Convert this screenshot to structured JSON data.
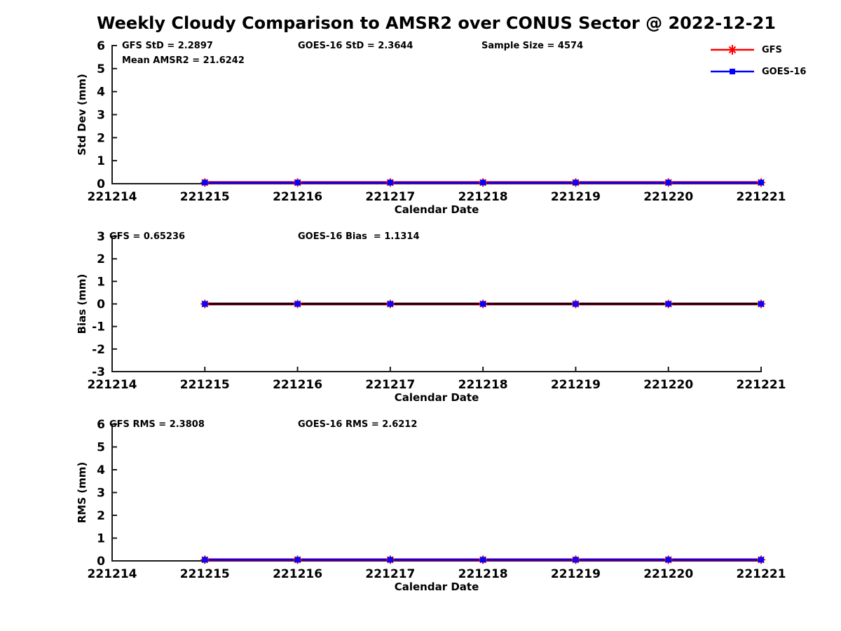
{
  "page": {
    "title": "Weekly Cloudy Comparison to AMSR2 over CONUS Sector @ 2022-12-21"
  },
  "colors": {
    "gfs": "#ff0000",
    "goes16": "#0000ff",
    "axis": "#1a1a1a",
    "zero_line": "#000000",
    "text": "#000000",
    "background": "#ffffff"
  },
  "legend": {
    "items": [
      {
        "label": "GFS",
        "color_key": "gfs",
        "marker": "asterisk"
      },
      {
        "label": "GOES-16",
        "color_key": "goes16",
        "marker": "square"
      }
    ]
  },
  "chart_data": [
    {
      "type": "line",
      "id": "stddev",
      "ylabel": "Std Dev (mm)",
      "xlabel": "Calendar Date",
      "ylim": [
        0,
        6
      ],
      "yticks": [
        0,
        1,
        2,
        3,
        4,
        5,
        6
      ],
      "xlim": [
        221214,
        221221
      ],
      "xticks": [
        221214,
        221215,
        221216,
        221217,
        221218,
        221219,
        221220,
        221221
      ],
      "xtick_labels": [
        "221214",
        "221215",
        "221216",
        "221217",
        "221218",
        "221219",
        "221220",
        "221221"
      ],
      "x": [
        221215,
        221216,
        221217,
        221218,
        221219,
        221220,
        221221
      ],
      "series": [
        {
          "name": "GFS",
          "color_key": "gfs",
          "marker": "asterisk",
          "values": [
            0.05,
            0.05,
            0.05,
            0.05,
            0.05,
            0.05,
            0.05
          ]
        },
        {
          "name": "GOES-16",
          "color_key": "goes16",
          "marker": "square",
          "values": [
            0.05,
            0.05,
            0.05,
            0.05,
            0.05,
            0.05,
            0.05
          ]
        }
      ],
      "zero_line": false,
      "annotations": [
        {
          "text": "GFS StD = 2.2897",
          "x_offset": 14,
          "row": 0
        },
        {
          "text": "Mean AMSR2 = 21.6242",
          "x_offset": 14,
          "row": 1
        },
        {
          "text": "GOES-16 StD = 2.3644",
          "x_offset": 265,
          "row": 0
        },
        {
          "text": "Sample Size = 4574",
          "x_offset": 527,
          "row": 0
        }
      ]
    },
    {
      "type": "line",
      "id": "bias",
      "ylabel": "Bias (mm)",
      "xlabel": "Calendar Date",
      "ylim": [
        -3,
        3
      ],
      "yticks": [
        -3,
        -2,
        -1,
        0,
        1,
        2,
        3
      ],
      "xlim": [
        221214,
        221221
      ],
      "xticks": [
        221214,
        221215,
        221216,
        221217,
        221218,
        221219,
        221220,
        221221
      ],
      "xtick_labels": [
        "221214",
        "221215",
        "221216",
        "221217",
        "221218",
        "221219",
        "221220",
        "221221"
      ],
      "x": [
        221215,
        221216,
        221217,
        221218,
        221219,
        221220,
        221221
      ],
      "series": [
        {
          "name": "GFS",
          "color_key": "gfs",
          "marker": "asterisk",
          "values": [
            0,
            0,
            0,
            0,
            0,
            0,
            0
          ]
        },
        {
          "name": "GOES-16",
          "color_key": "goes16",
          "marker": "square",
          "values": [
            0,
            0,
            0,
            0,
            0,
            0,
            0
          ]
        }
      ],
      "zero_line": true,
      "annotations": [
        {
          "text": "GFS = 0.65236",
          "x_offset": -4,
          "row": 0
        },
        {
          "text": "GOES-16 Bias  = 1.1314",
          "x_offset": 265,
          "row": 0
        }
      ]
    },
    {
      "type": "line",
      "id": "rms",
      "ylabel": "RMS (mm)",
      "xlabel": "Calendar Date",
      "ylim": [
        0,
        6
      ],
      "yticks": [
        0,
        1,
        2,
        3,
        4,
        5,
        6
      ],
      "xlim": [
        221214,
        221221
      ],
      "xticks": [
        221214,
        221215,
        221216,
        221217,
        221218,
        221219,
        221220,
        221221
      ],
      "xtick_labels": [
        "221214",
        "221215",
        "221216",
        "221217",
        "221218",
        "221219",
        "221220",
        "221221"
      ],
      "x": [
        221215,
        221216,
        221217,
        221218,
        221219,
        221220,
        221221
      ],
      "series": [
        {
          "name": "GFS",
          "color_key": "gfs",
          "marker": "asterisk",
          "values": [
            0.05,
            0.05,
            0.05,
            0.05,
            0.05,
            0.05,
            0.05
          ]
        },
        {
          "name": "GOES-16",
          "color_key": "goes16",
          "marker": "square",
          "values": [
            0.05,
            0.05,
            0.05,
            0.05,
            0.05,
            0.05,
            0.05
          ]
        }
      ],
      "zero_line": false,
      "annotations": [
        {
          "text": "GFS RMS = 2.3808",
          "x_offset": -4,
          "row": 0
        },
        {
          "text": "GOES-16 RMS = 2.6212",
          "x_offset": 265,
          "row": 0
        }
      ]
    }
  ]
}
